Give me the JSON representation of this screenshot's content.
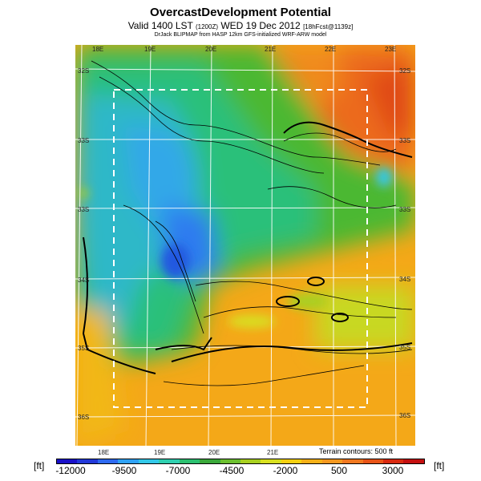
{
  "header": {
    "title": "OvercastDevelopment Potential",
    "valid_prefix": "Valid 1400 LST",
    "valid_code": "(1200Z)",
    "valid_date": "WED 19 Dec 2012",
    "valid_run": "[18hFcst@1139z]",
    "credit": "DrJack BLIPMAP from HASP 12km GFS-initialized WRF-ARW model"
  },
  "map": {
    "lon_labels_top": [
      "18E",
      "19E",
      "20E",
      "21E",
      "22E",
      "23E"
    ],
    "lon_labels_bottom": [
      "18E",
      "19E",
      "20E",
      "21E"
    ],
    "lat_labels_left": [
      "32S",
      "33S",
      "33S",
      "34S",
      "35S",
      "36S"
    ],
    "lat_labels_right": [
      "32S",
      "33S",
      "33S",
      "34S",
      "35S",
      "36S"
    ],
    "terrain_note": "Terrain contours: 500 ft"
  },
  "colorbar": {
    "unit_left": "[ft]",
    "unit_right": "[ft]",
    "labels": [
      "-12000",
      "-9500",
      "-7000",
      "-4500",
      "-2000",
      "500",
      "3000"
    ],
    "colors": [
      "#1a10c8",
      "#2238d8",
      "#2e6af0",
      "#2fa2f5",
      "#33c8e8",
      "#2fd0b0",
      "#2cc070",
      "#3aa83a",
      "#6cc030",
      "#a8d020",
      "#d8e020",
      "#f4d010",
      "#f4b018",
      "#f49820",
      "#f07820",
      "#e85418",
      "#d82a10",
      "#c41010"
    ]
  }
}
